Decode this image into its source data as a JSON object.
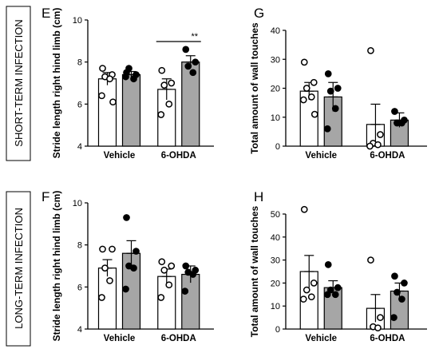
{
  "row_labels": {
    "short": "SHORT-TERM INFECTION",
    "long": "LONG-TERM INFECTION"
  },
  "colors": {
    "white_bar": "#ffffff",
    "gray_bar": "#a6a6a6",
    "ink": "#000000"
  },
  "chart_data": [
    {
      "id": "E",
      "type": "bar",
      "panel_letter": "E",
      "ylabel": "Stride length right hind limb (cm)",
      "ylim": [
        4,
        10
      ],
      "yticks": [
        "4",
        "6",
        "8",
        "10"
      ],
      "categories": [
        "Vehicle",
        "6-OHDA"
      ],
      "series": [
        {
          "fill": "white",
          "values": [
            7.2,
            6.7
          ],
          "sem": [
            0.3,
            0.5
          ],
          "points": [
            [
              7.7,
              7.4,
              7.3,
              7.2,
              6.4,
              6.1
            ],
            [
              7.6,
              7.0,
              6.9,
              6.0,
              5.5
            ]
          ]
        },
        {
          "fill": "gray",
          "values": [
            7.4,
            8.0
          ],
          "sem": [
            0.15,
            0.3
          ],
          "points": [
            [
              7.5,
              7.4,
              7.7,
              7.2,
              7.3
            ],
            [
              8.6,
              8.0,
              7.8,
              7.5
            ]
          ]
        }
      ],
      "significance": {
        "label": "**",
        "between": "6-OHDA"
      }
    },
    {
      "id": "G",
      "type": "bar",
      "panel_letter": "G",
      "ylabel": "Total amount of wall touches",
      "ylim": [
        0,
        40
      ],
      "yticks": [
        "0",
        "10",
        "20",
        "30",
        "40"
      ],
      "categories": [
        "Vehicle",
        "6-OHDA"
      ],
      "series": [
        {
          "fill": "white",
          "values": [
            19,
            7.5
          ],
          "sem": [
            3,
            7
          ],
          "points": [
            [
              29,
              22,
              20,
              17,
              16,
              11
            ],
            [
              33,
              4,
              1,
              0.5,
              0
            ]
          ]
        },
        {
          "fill": "gray",
          "values": [
            17,
            9
          ],
          "sem": [
            5,
            2.5
          ],
          "points": [
            [
              25,
              20,
              19,
              13,
              6
            ],
            [
              12,
              9,
              8,
              8
            ]
          ]
        }
      ]
    },
    {
      "id": "F",
      "type": "bar",
      "panel_letter": "F",
      "ylabel": "Stride length right hind limb (cm)",
      "ylim": [
        4,
        10
      ],
      "yticks": [
        "4",
        "6",
        "8",
        "10"
      ],
      "categories": [
        "Vehicle",
        "6-OHDA"
      ],
      "series": [
        {
          "fill": "white",
          "values": [
            6.9,
            6.5
          ],
          "sem": [
            0.4,
            0.35
          ],
          "points": [
            [
              7.8,
              7.8,
              6.9,
              6.3,
              5.5
            ],
            [
              7.2,
              7.0,
              6.8,
              6.1,
              5.5
            ]
          ]
        },
        {
          "fill": "gray",
          "values": [
            7.6,
            6.6
          ],
          "sem": [
            0.6,
            0.4
          ],
          "points": [
            [
              9.3,
              7.7,
              7.0,
              6.9,
              5.9
            ],
            [
              7.0,
              6.8,
              6.7,
              6.6,
              5.8
            ]
          ]
        }
      ]
    },
    {
      "id": "H",
      "type": "bar",
      "panel_letter": "H",
      "ylabel": "Total amount of wall touches",
      "ylim": [
        0,
        50
      ],
      "yticks": [
        "0",
        "10",
        "20",
        "30",
        "40",
        "50"
      ],
      "categories": [
        "Vehicle",
        "6-OHDA"
      ],
      "series": [
        {
          "fill": "white",
          "values": [
            25,
            9
          ],
          "sem": [
            7,
            6
          ],
          "points": [
            [
              52,
              20,
              17,
              14,
              13
            ],
            [
              30,
              5,
              1,
              0.5
            ]
          ]
        },
        {
          "fill": "gray",
          "values": [
            18,
            16.5
          ],
          "sem": [
            3,
            3.5
          ],
          "points": [
            [
              28,
              18,
              17,
              15,
              15
            ],
            [
              23,
              20,
              16,
              13,
              5
            ]
          ]
        }
      ]
    }
  ]
}
